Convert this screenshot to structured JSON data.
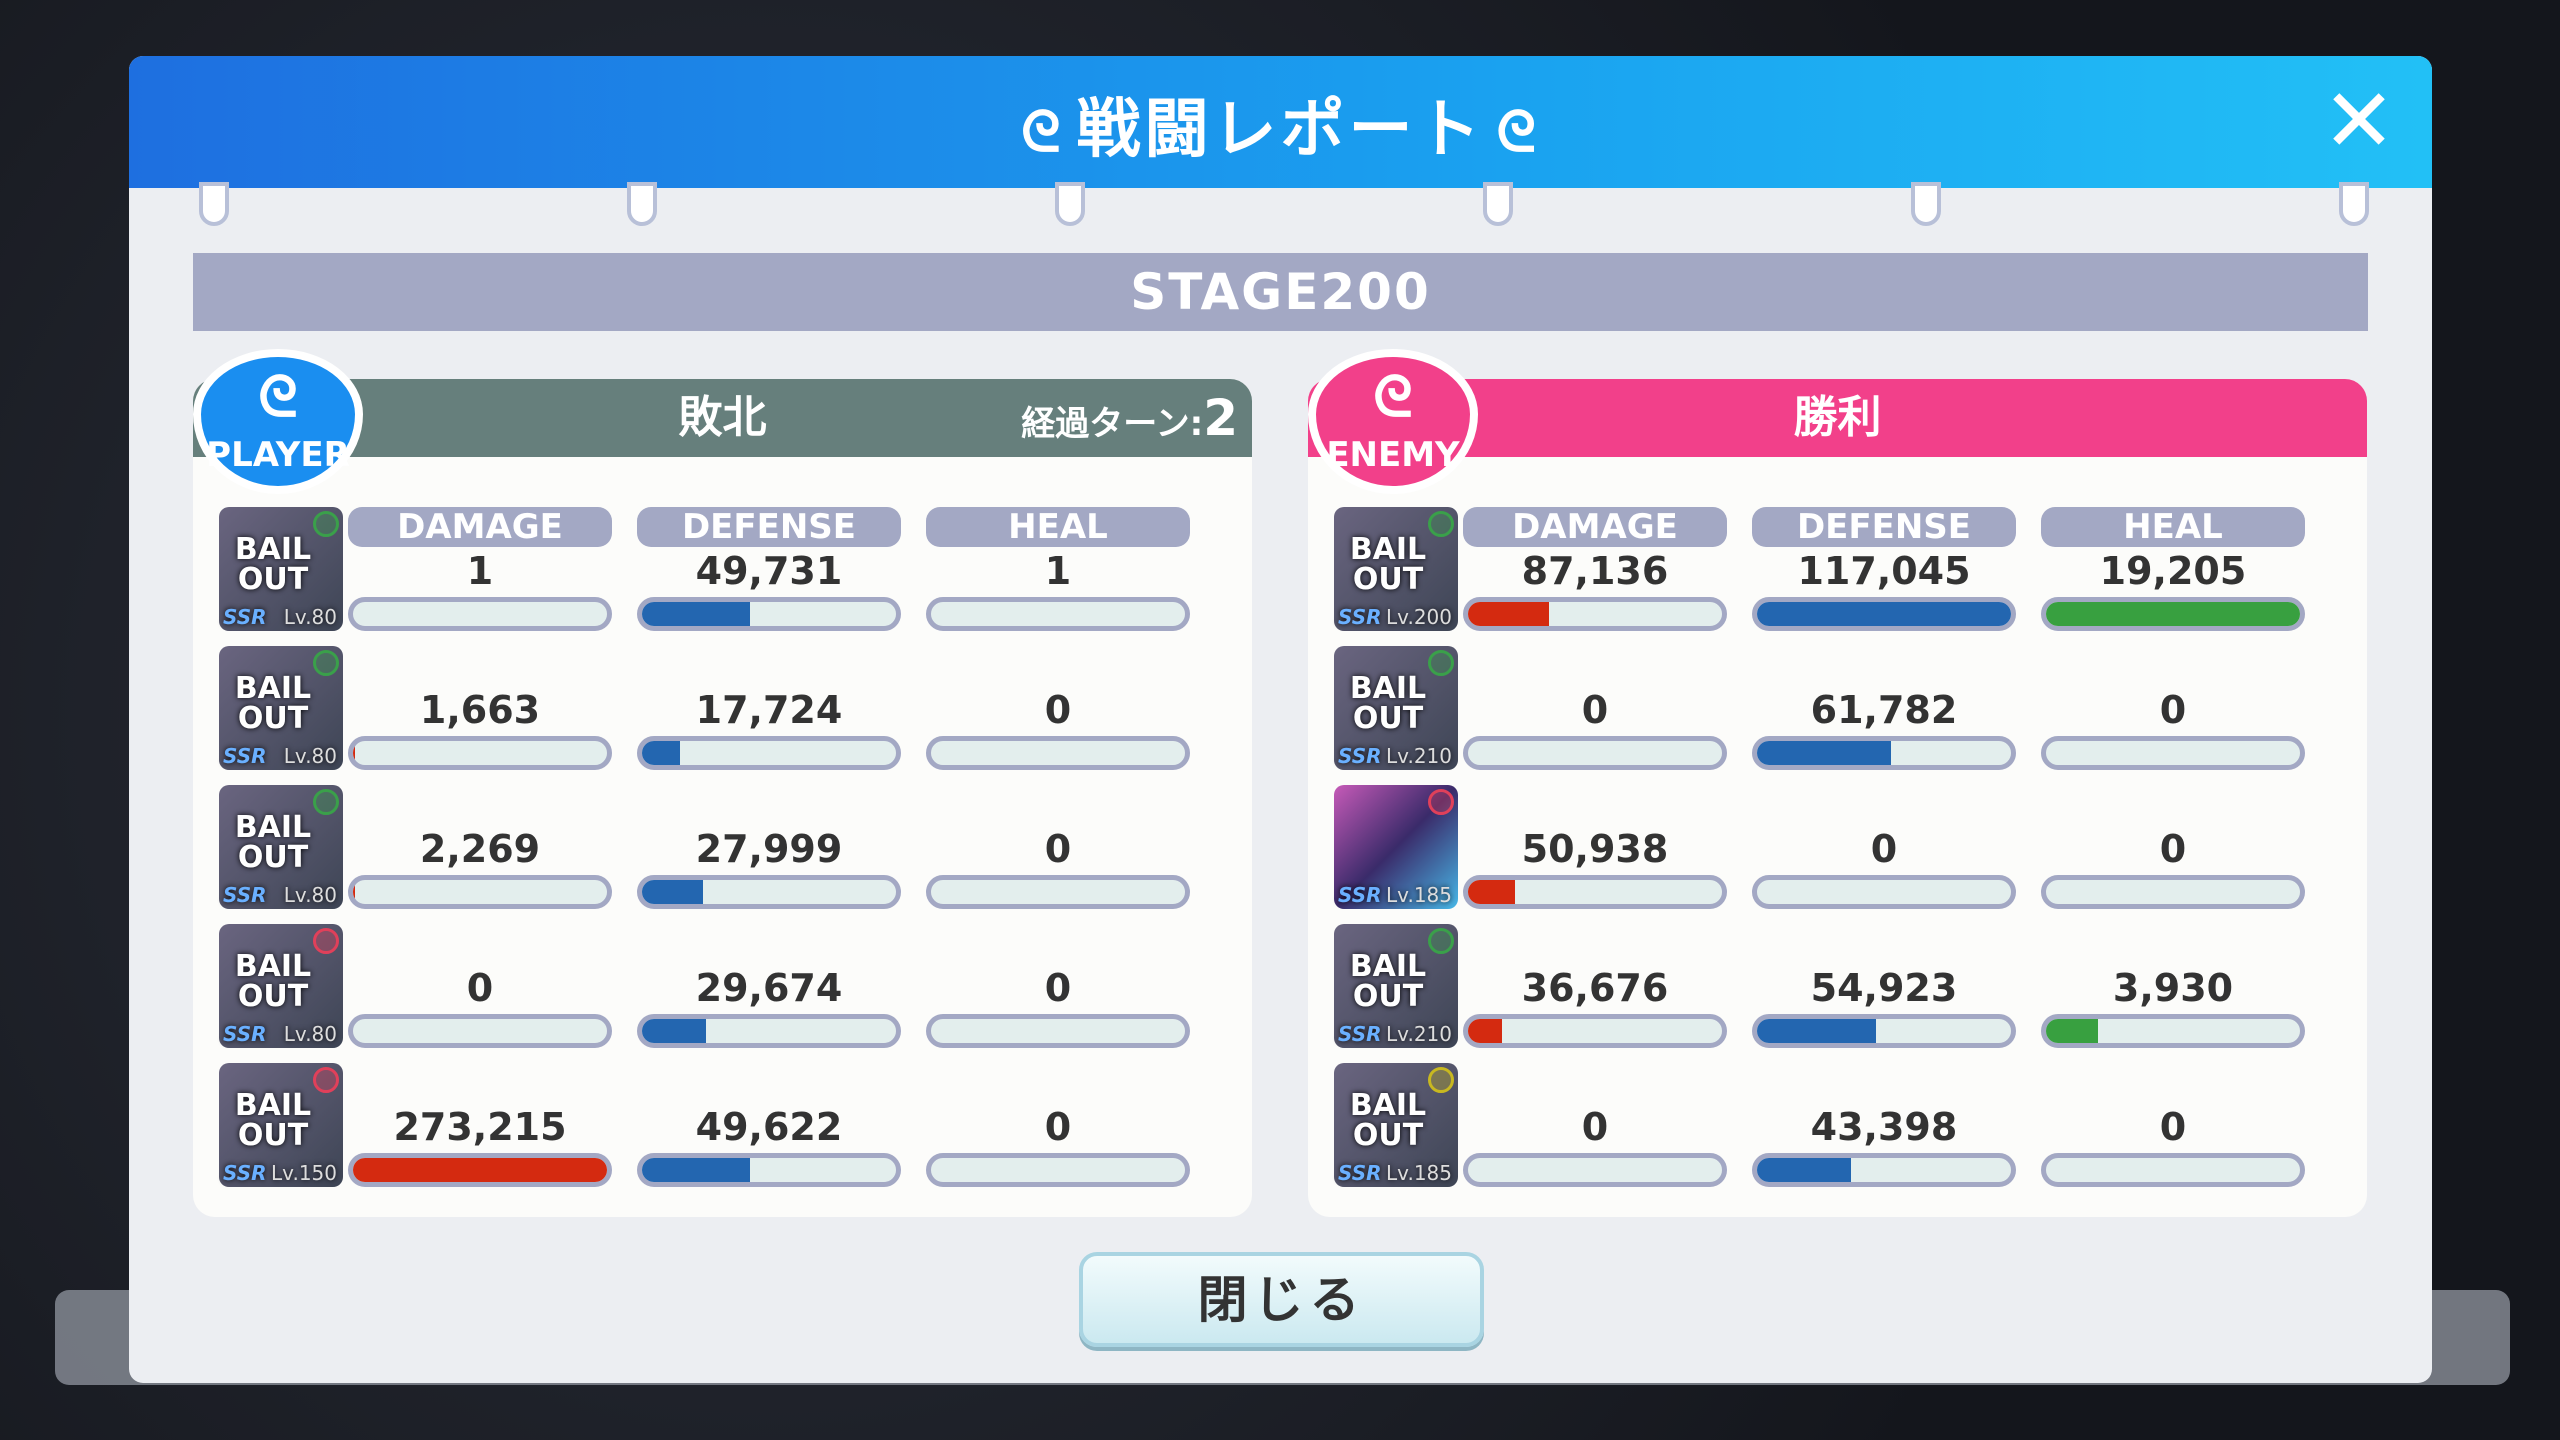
{
  "title": "戦闘レポート",
  "stage": "STAGE200",
  "close_button": "閉じる",
  "column_labels": [
    "DAMAGE",
    "DEFENSE",
    "HEAL"
  ],
  "colors": {
    "damage": "#d42a10",
    "defense": "#2366b0",
    "heal": "#38a040",
    "player_header": "#667f7c",
    "enemy_header": "#f2408a",
    "player_badge": "#1a8ef0",
    "enemy_badge": "#f2408a"
  },
  "maxima": {
    "damage": 273215,
    "defense": 117045,
    "heal": 19205
  },
  "player": {
    "badge": "PLAYER",
    "result": "敗北",
    "turns_label": "経過ターン:",
    "turns": "2",
    "units": [
      {
        "avatar": "BAIL OUT",
        "level": "Lv.80",
        "rarity": "SSR",
        "attr": "#3aa04a",
        "damage": "1",
        "defense": "49,731",
        "heal": "1"
      },
      {
        "avatar": "BAIL OUT",
        "level": "Lv.80",
        "rarity": "SSR",
        "attr": "#3aa04a",
        "damage": "1,663",
        "defense": "17,724",
        "heal": "0"
      },
      {
        "avatar": "BAIL OUT",
        "level": "Lv.80",
        "rarity": "SSR",
        "attr": "#3aa04a",
        "damage": "2,269",
        "defense": "27,999",
        "heal": "0"
      },
      {
        "avatar": "BAIL OUT",
        "level": "Lv.80",
        "rarity": "SSR",
        "attr": "#e0405a",
        "damage": "0",
        "defense": "29,674",
        "heal": "0"
      },
      {
        "avatar": "BAIL OUT",
        "level": "Lv.150",
        "rarity": "SSR",
        "attr": "#e0405a",
        "damage": "273,215",
        "defense": "49,622",
        "heal": "0"
      }
    ]
  },
  "enemy": {
    "badge": "ENEMY",
    "result": "勝利",
    "units": [
      {
        "avatar": "BAIL OUT",
        "level": "Lv.200",
        "rarity": "SSR",
        "attr": "#3aa04a",
        "damage": "87,136",
        "defense": "117,045",
        "heal": "19,205"
      },
      {
        "avatar": "BAIL OUT",
        "level": "Lv.210",
        "rarity": "SSR",
        "attr": "#3aa04a",
        "damage": "0",
        "defense": "61,782",
        "heal": "0"
      },
      {
        "avatar": "",
        "level": "Lv.185",
        "rarity": "SSR",
        "attr": "#e0405a",
        "damage": "50,938",
        "defense": "0",
        "heal": "0"
      },
      {
        "avatar": "BAIL OUT",
        "level": "Lv.210",
        "rarity": "SSR",
        "attr": "#3aa04a",
        "damage": "36,676",
        "defense": "54,923",
        "heal": "3,930"
      },
      {
        "avatar": "BAIL OUT",
        "level": "Lv.185",
        "rarity": "SSR",
        "attr": "#c8b820",
        "damage": "0",
        "defense": "43,398",
        "heal": "0"
      }
    ]
  }
}
